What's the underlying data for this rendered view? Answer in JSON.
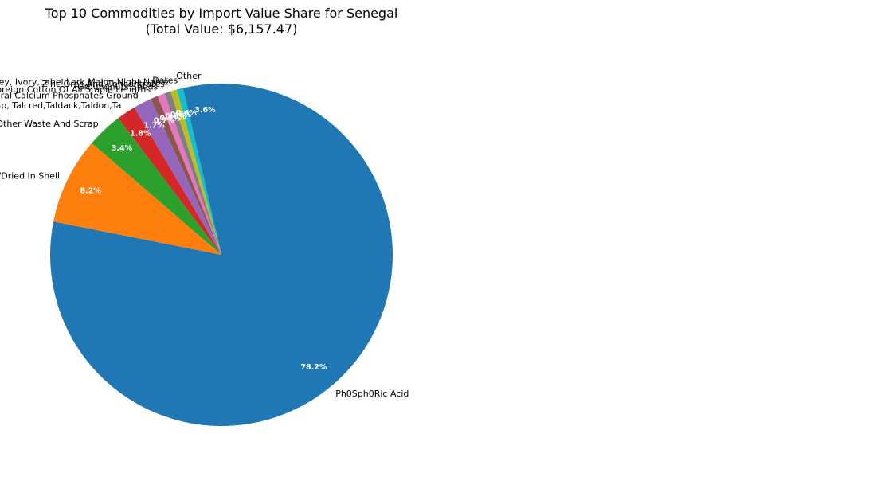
{
  "chart_data": {
    "type": "pie",
    "title": "Top 10 Commodities by Import Value Share for Senegal\n(Total Value: $6,157.47)",
    "start_angle_deg": 90,
    "direction": "clockwise",
    "slices": [
      {
        "label": "Ph0Sph0Ric Acid",
        "value": 78.2,
        "pct_label": "78.2%",
        "color": "#1f77b4"
      },
      {
        "label": "Cashen Nuts Fresh/Dried In Shell",
        "value": 8.2,
        "pct_label": "8.2%",
        "color": "#ff7f0e"
      },
      {
        "label": "Other Waste And Scrap",
        "value": 3.4,
        "pct_label": "3.4%",
        "color": "#2ca02c"
      },
      {
        "label": "Aluminium Scrap Coverd By Isri Code Tablettabloid,Taboo,Taint/Tabor,Take, Talap, Talcred,Taldack,Taldon,Ta",
        "value": 1.8,
        "pct_label": "1.8%",
        "color": "#d62728"
      },
      {
        "label": "Natural Calcium Phosphates Ground",
        "value": 1.7,
        "pct_label": "1.7%",
        "color": "#9467bd"
      },
      {
        "label": "Foreign Cotton Of All Staple Lengths",
        "value": 0.7,
        "pct_label": "0.7%",
        "color": "#8c564b"
      },
      {
        "label": "Groundnuts Seeds",
        "value": 0.7,
        "pct_label": "0.7%",
        "color": "#e377c2"
      },
      {
        "label": "Zinc Ores And Concentrates",
        "value": 0.6,
        "pct_label": "0.6%",
        "color": "#7f7f7f"
      },
      {
        "label": "Brass Scrap Covered By Isri Code Drink , Ebony,Enerv,Elder,Engel,Erin,Grape,Honey, Ivory,Label,Lark,Malon,Night,Noble,",
        "value": 0.6,
        "pct_label": "0.6%",
        "color": "#bcbd22"
      },
      {
        "label": "Dates",
        "value": 0.6,
        "pct_label": "0.6%",
        "color": "#17becf"
      },
      {
        "label": "Other",
        "value": 3.6,
        "pct_label": "3.6%",
        "color": "#1f77b4"
      }
    ]
  }
}
